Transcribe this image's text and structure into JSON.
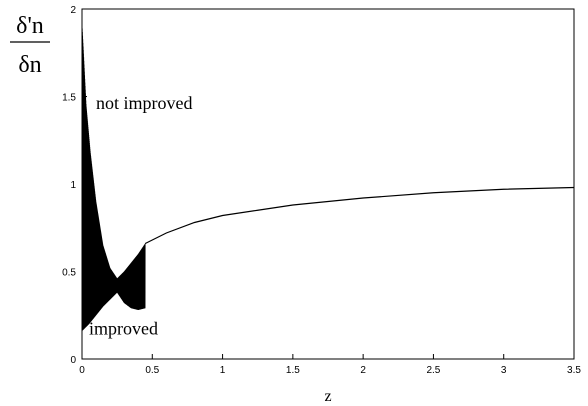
{
  "chart_data": {
    "type": "line",
    "title": "",
    "xlabel": "z",
    "ylabel_numerator": "δ'n",
    "ylabel_denominator": "δn",
    "xlim": [
      0,
      3.5
    ],
    "ylim": [
      0,
      2
    ],
    "x_ticks": [
      0,
      0.5,
      1,
      1.5,
      2,
      2.5,
      3,
      3.5
    ],
    "x_tick_labels": [
      "0",
      "0.5",
      "1",
      "1.5",
      "2",
      "2.5",
      "3",
      "3.5"
    ],
    "y_ticks": [
      0,
      0.5,
      1,
      1.5,
      2
    ],
    "y_tick_labels": [
      "0",
      "0.5",
      "1",
      "1.5",
      "2"
    ],
    "grid": false,
    "annotations": [
      {
        "text": "not improved",
        "x": 0.1,
        "y": 1.43
      },
      {
        "text": "improved",
        "x": 0.05,
        "y": 0.14
      }
    ],
    "series": [
      {
        "upper_envelope": {
          "x": [
            0.0,
            0.03,
            0.06,
            0.1,
            0.15,
            0.2,
            0.25,
            0.3,
            0.35,
            0.4,
            0.45
          ],
          "y": [
            1.93,
            1.45,
            1.18,
            0.9,
            0.65,
            0.52,
            0.46,
            0.5,
            0.55,
            0.6,
            0.66
          ]
        },
        "lower_envelope": {
          "x": [
            0.0,
            0.05,
            0.1,
            0.15,
            0.2,
            0.25,
            0.3,
            0.35,
            0.4,
            0.45
          ],
          "y": [
            0.16,
            0.2,
            0.25,
            0.3,
            0.34,
            0.38,
            0.32,
            0.29,
            0.28,
            0.29
          ]
        },
        "smooth": {
          "x": [
            0.45,
            0.6,
            0.8,
            1.0,
            1.25,
            1.5,
            2.0,
            2.5,
            3.0,
            3.5
          ],
          "y": [
            0.66,
            0.72,
            0.78,
            0.82,
            0.85,
            0.88,
            0.92,
            0.95,
            0.97,
            0.98
          ]
        }
      }
    ]
  }
}
